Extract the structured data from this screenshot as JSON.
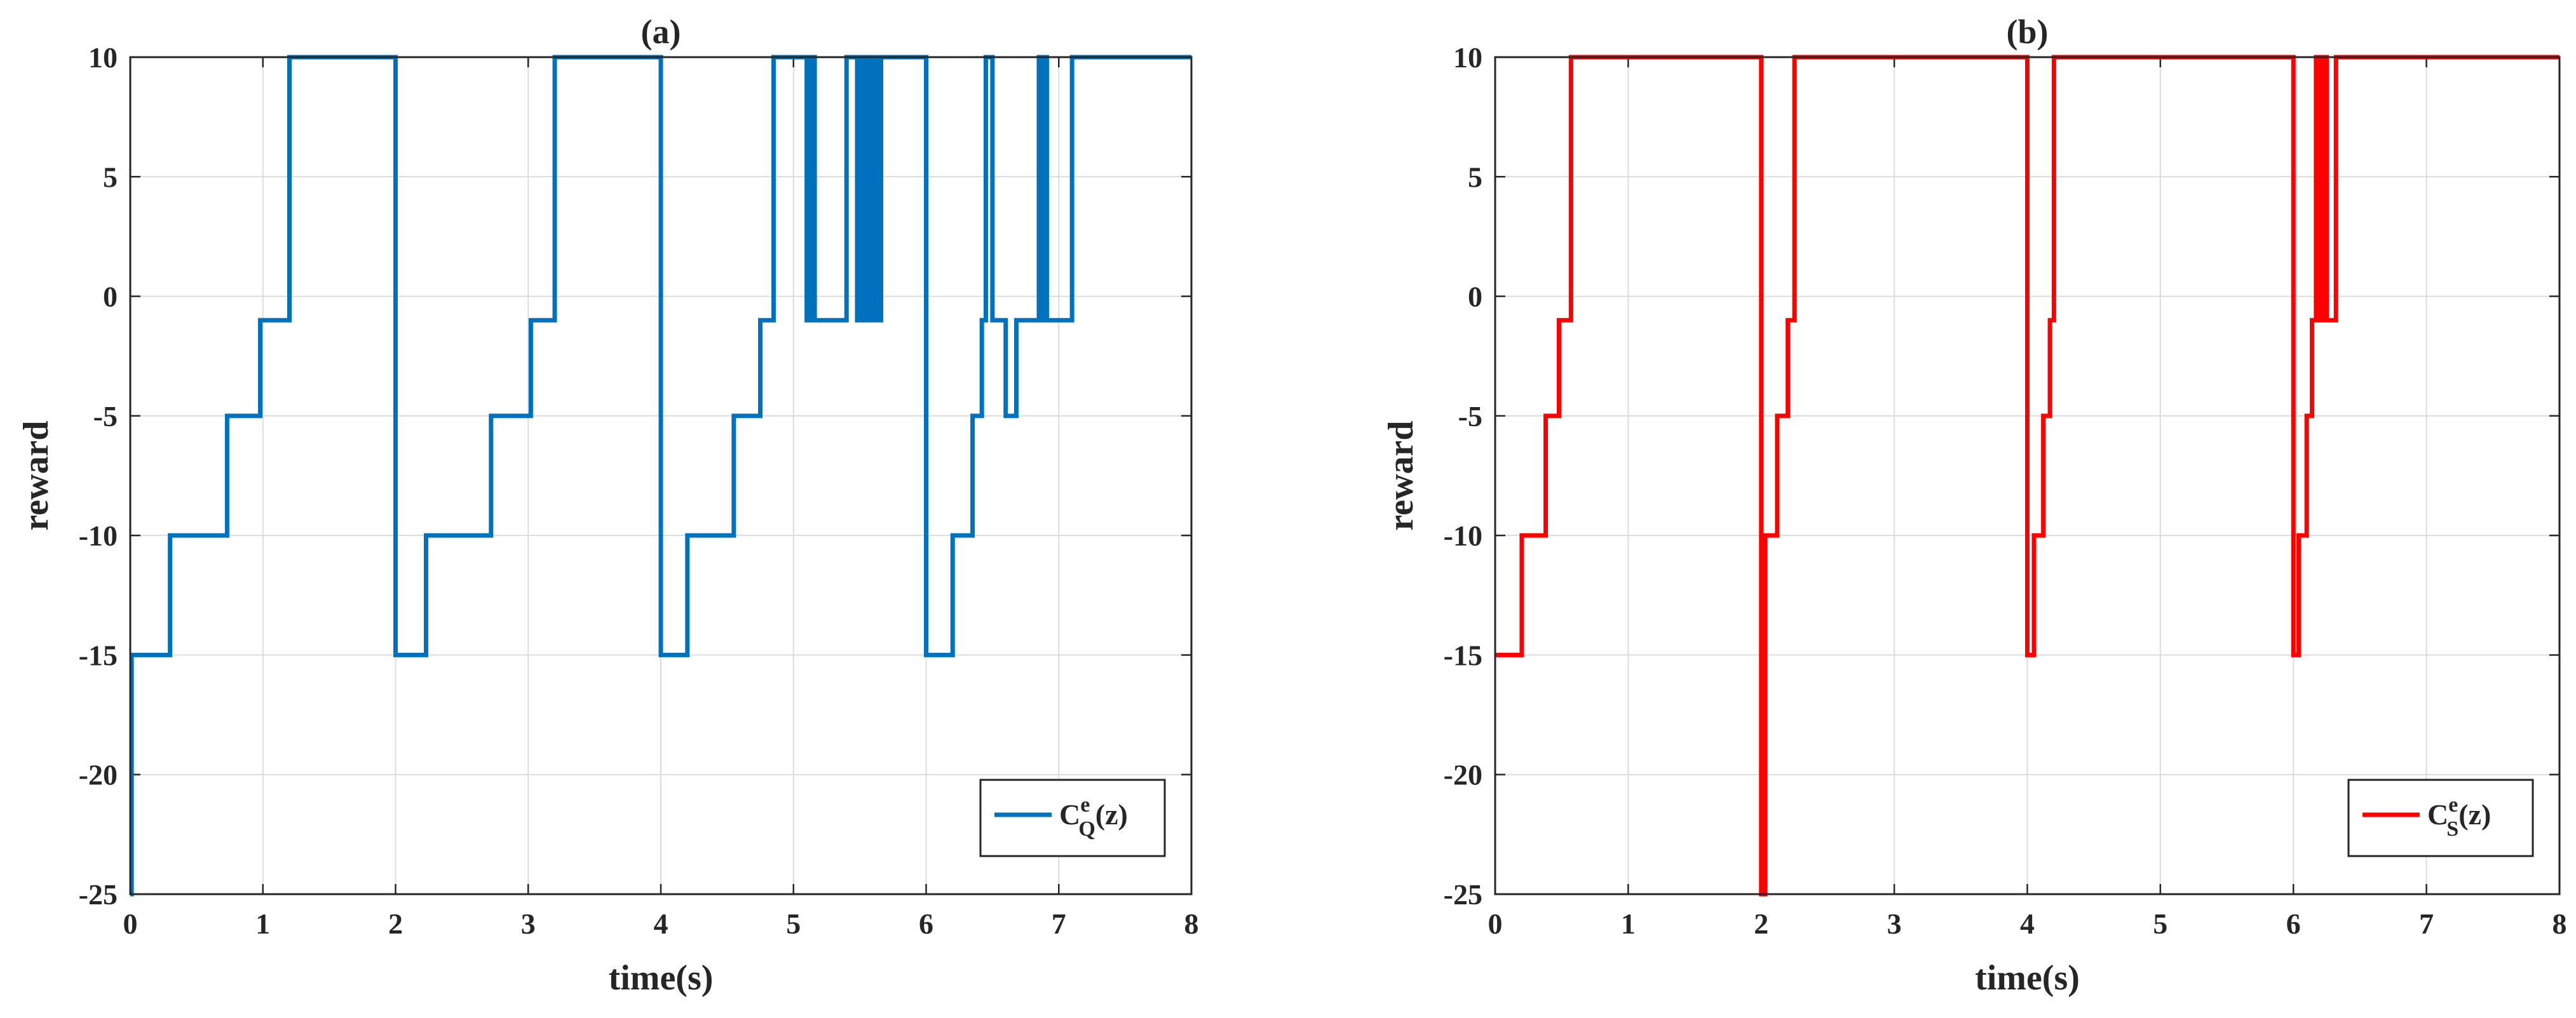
{
  "chart_data": [
    {
      "type": "line",
      "title": "(a)",
      "xlabel": "time(s)",
      "ylabel": "reward",
      "xlim": [
        0,
        8
      ],
      "ylim": [
        -25,
        10
      ],
      "xticks": [
        0,
        1,
        2,
        3,
        4,
        5,
        6,
        7,
        8
      ],
      "yticks": [
        10,
        5,
        0,
        -5,
        -10,
        -15,
        -20,
        -25
      ],
      "xtick_labels": [
        "0",
        "1",
        "2",
        "3",
        "4",
        "5",
        "6",
        "7",
        "8"
      ],
      "ytick_labels": [
        "10",
        "5",
        "0",
        "-5",
        "-10",
        "-15",
        "-20",
        "-25"
      ],
      "grid": true,
      "legend_position": "bottom-right",
      "series": [
        {
          "name": "C_Q^e(z)",
          "legend": {
            "base": "C",
            "sup": "e",
            "sub": "Q",
            "tail": "(z)"
          },
          "color": "#0072BD",
          "step_points": [
            [
              0,
              -25
            ],
            [
              0.01,
              -15
            ],
            [
              0.3,
              -10
            ],
            [
              0.73,
              -5
            ],
            [
              0.98,
              -1
            ],
            [
              1.2,
              10
            ],
            [
              2.0,
              -15
            ],
            [
              2.23,
              -10
            ],
            [
              2.72,
              -5
            ],
            [
              3.02,
              -1
            ],
            [
              3.2,
              10
            ],
            [
              4.0,
              -15
            ],
            [
              4.2,
              -10
            ],
            [
              4.55,
              -5
            ],
            [
              4.75,
              -1
            ],
            [
              4.85,
              10
            ],
            [
              5.1,
              -1
            ],
            [
              5.13,
              10
            ],
            [
              5.16,
              -1
            ],
            [
              5.4,
              10
            ],
            [
              5.48,
              -1
            ],
            [
              5.5,
              10
            ],
            [
              5.52,
              -1
            ],
            [
              5.54,
              10
            ],
            [
              5.56,
              -1
            ],
            [
              5.58,
              10
            ],
            [
              5.6,
              -1
            ],
            [
              5.62,
              10
            ],
            [
              5.64,
              -1
            ],
            [
              5.66,
              10
            ],
            [
              6.0,
              -15
            ],
            [
              6.2,
              -10
            ],
            [
              6.35,
              -5
            ],
            [
              6.42,
              -1
            ],
            [
              6.45,
              10
            ],
            [
              6.5,
              -1
            ],
            [
              6.6,
              -5
            ],
            [
              6.68,
              -1
            ],
            [
              6.85,
              10
            ],
            [
              6.87,
              -1
            ],
            [
              6.89,
              10
            ],
            [
              6.91,
              -1
            ],
            [
              7.1,
              10
            ],
            [
              8.0,
              10
            ]
          ]
        }
      ]
    },
    {
      "type": "line",
      "title": "(b)",
      "xlabel": "time(s)",
      "ylabel": "reward",
      "xlim": [
        0,
        8
      ],
      "ylim": [
        -25,
        10
      ],
      "xticks": [
        0,
        1,
        2,
        3,
        4,
        5,
        6,
        7,
        8
      ],
      "yticks": [
        10,
        5,
        0,
        -5,
        -10,
        -15,
        -20,
        -25
      ],
      "xtick_labels": [
        "0",
        "1",
        "2",
        "3",
        "4",
        "5",
        "6",
        "7",
        "8"
      ],
      "ytick_labels": [
        "10",
        "5",
        "0",
        "-5",
        "-10",
        "-15",
        "-20",
        "-25"
      ],
      "grid": true,
      "legend_position": "bottom-right",
      "series": [
        {
          "name": "C_S^e(z)",
          "legend": {
            "base": "C",
            "sup": "e",
            "sub": "S",
            "tail": "(z)"
          },
          "color": "#FF0000",
          "step_points": [
            [
              0,
              -15
            ],
            [
              0.2,
              -10
            ],
            [
              0.38,
              -5
            ],
            [
              0.48,
              -1
            ],
            [
              0.57,
              10
            ],
            [
              2.0,
              -25
            ],
            [
              2.03,
              -10
            ],
            [
              2.12,
              -5
            ],
            [
              2.2,
              -1
            ],
            [
              2.25,
              10
            ],
            [
              4.0,
              -15
            ],
            [
              4.05,
              -10
            ],
            [
              4.12,
              -5
            ],
            [
              4.17,
              -1
            ],
            [
              4.2,
              10
            ],
            [
              6.0,
              -15
            ],
            [
              6.04,
              -10
            ],
            [
              6.1,
              -5
            ],
            [
              6.14,
              -1
            ],
            [
              6.17,
              10
            ],
            [
              6.2,
              -1
            ],
            [
              6.23,
              10
            ],
            [
              6.25,
              -1
            ],
            [
              6.32,
              10
            ],
            [
              8.0,
              10
            ]
          ]
        }
      ]
    }
  ]
}
